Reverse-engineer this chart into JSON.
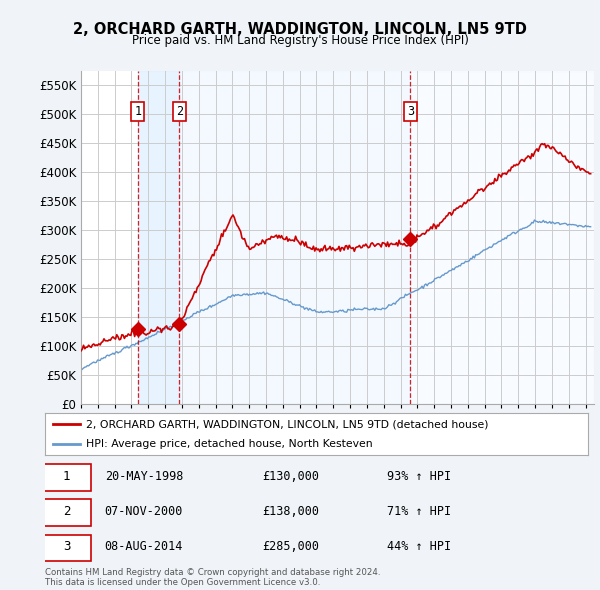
{
  "title_line1": "2, ORCHARD GARTH, WADDINGTON, LINCOLN, LN5 9TD",
  "title_line2": "Price paid vs. HM Land Registry's House Price Index (HPI)",
  "ytick_values": [
    0,
    50000,
    100000,
    150000,
    200000,
    250000,
    300000,
    350000,
    400000,
    450000,
    500000,
    550000
  ],
  "ylim": [
    0,
    575000
  ],
  "xlim_start": 1995.0,
  "xlim_end": 2025.5,
  "xtick_years": [
    1995,
    1996,
    1997,
    1998,
    1999,
    2000,
    2001,
    2002,
    2003,
    2004,
    2005,
    2006,
    2007,
    2008,
    2009,
    2010,
    2011,
    2012,
    2013,
    2014,
    2015,
    2016,
    2017,
    2018,
    2019,
    2020,
    2021,
    2022,
    2023,
    2024,
    2025
  ],
  "sale_dates": [
    1998.38,
    2000.85,
    2014.59
  ],
  "sale_prices": [
    130000,
    138000,
    285000
  ],
  "sale_labels": [
    "1",
    "2",
    "3"
  ],
  "vline_color": "#cc0000",
  "sale_marker_color": "#cc0000",
  "hpi_line_color": "#6699cc",
  "price_line_color": "#cc0000",
  "shade_color": "#ddeeff",
  "legend_label_red": "2, ORCHARD GARTH, WADDINGTON, LINCOLN, LN5 9TD (detached house)",
  "legend_label_blue": "HPI: Average price, detached house, North Kesteven",
  "table_rows": [
    {
      "label": "1",
      "date": "20-MAY-1998",
      "price": "£130,000",
      "hpi": "93% ↑ HPI"
    },
    {
      "label": "2",
      "date": "07-NOV-2000",
      "price": "£138,000",
      "hpi": "71% ↑ HPI"
    },
    {
      "label": "3",
      "date": "08-AUG-2014",
      "price": "£285,000",
      "hpi": "44% ↑ HPI"
    }
  ],
  "footer_text": "Contains HM Land Registry data © Crown copyright and database right 2024.\nThis data is licensed under the Open Government Licence v3.0.",
  "bg_color": "#f0f4f8",
  "plot_bg_color": "#ffffff",
  "grid_color": "#cccccc"
}
